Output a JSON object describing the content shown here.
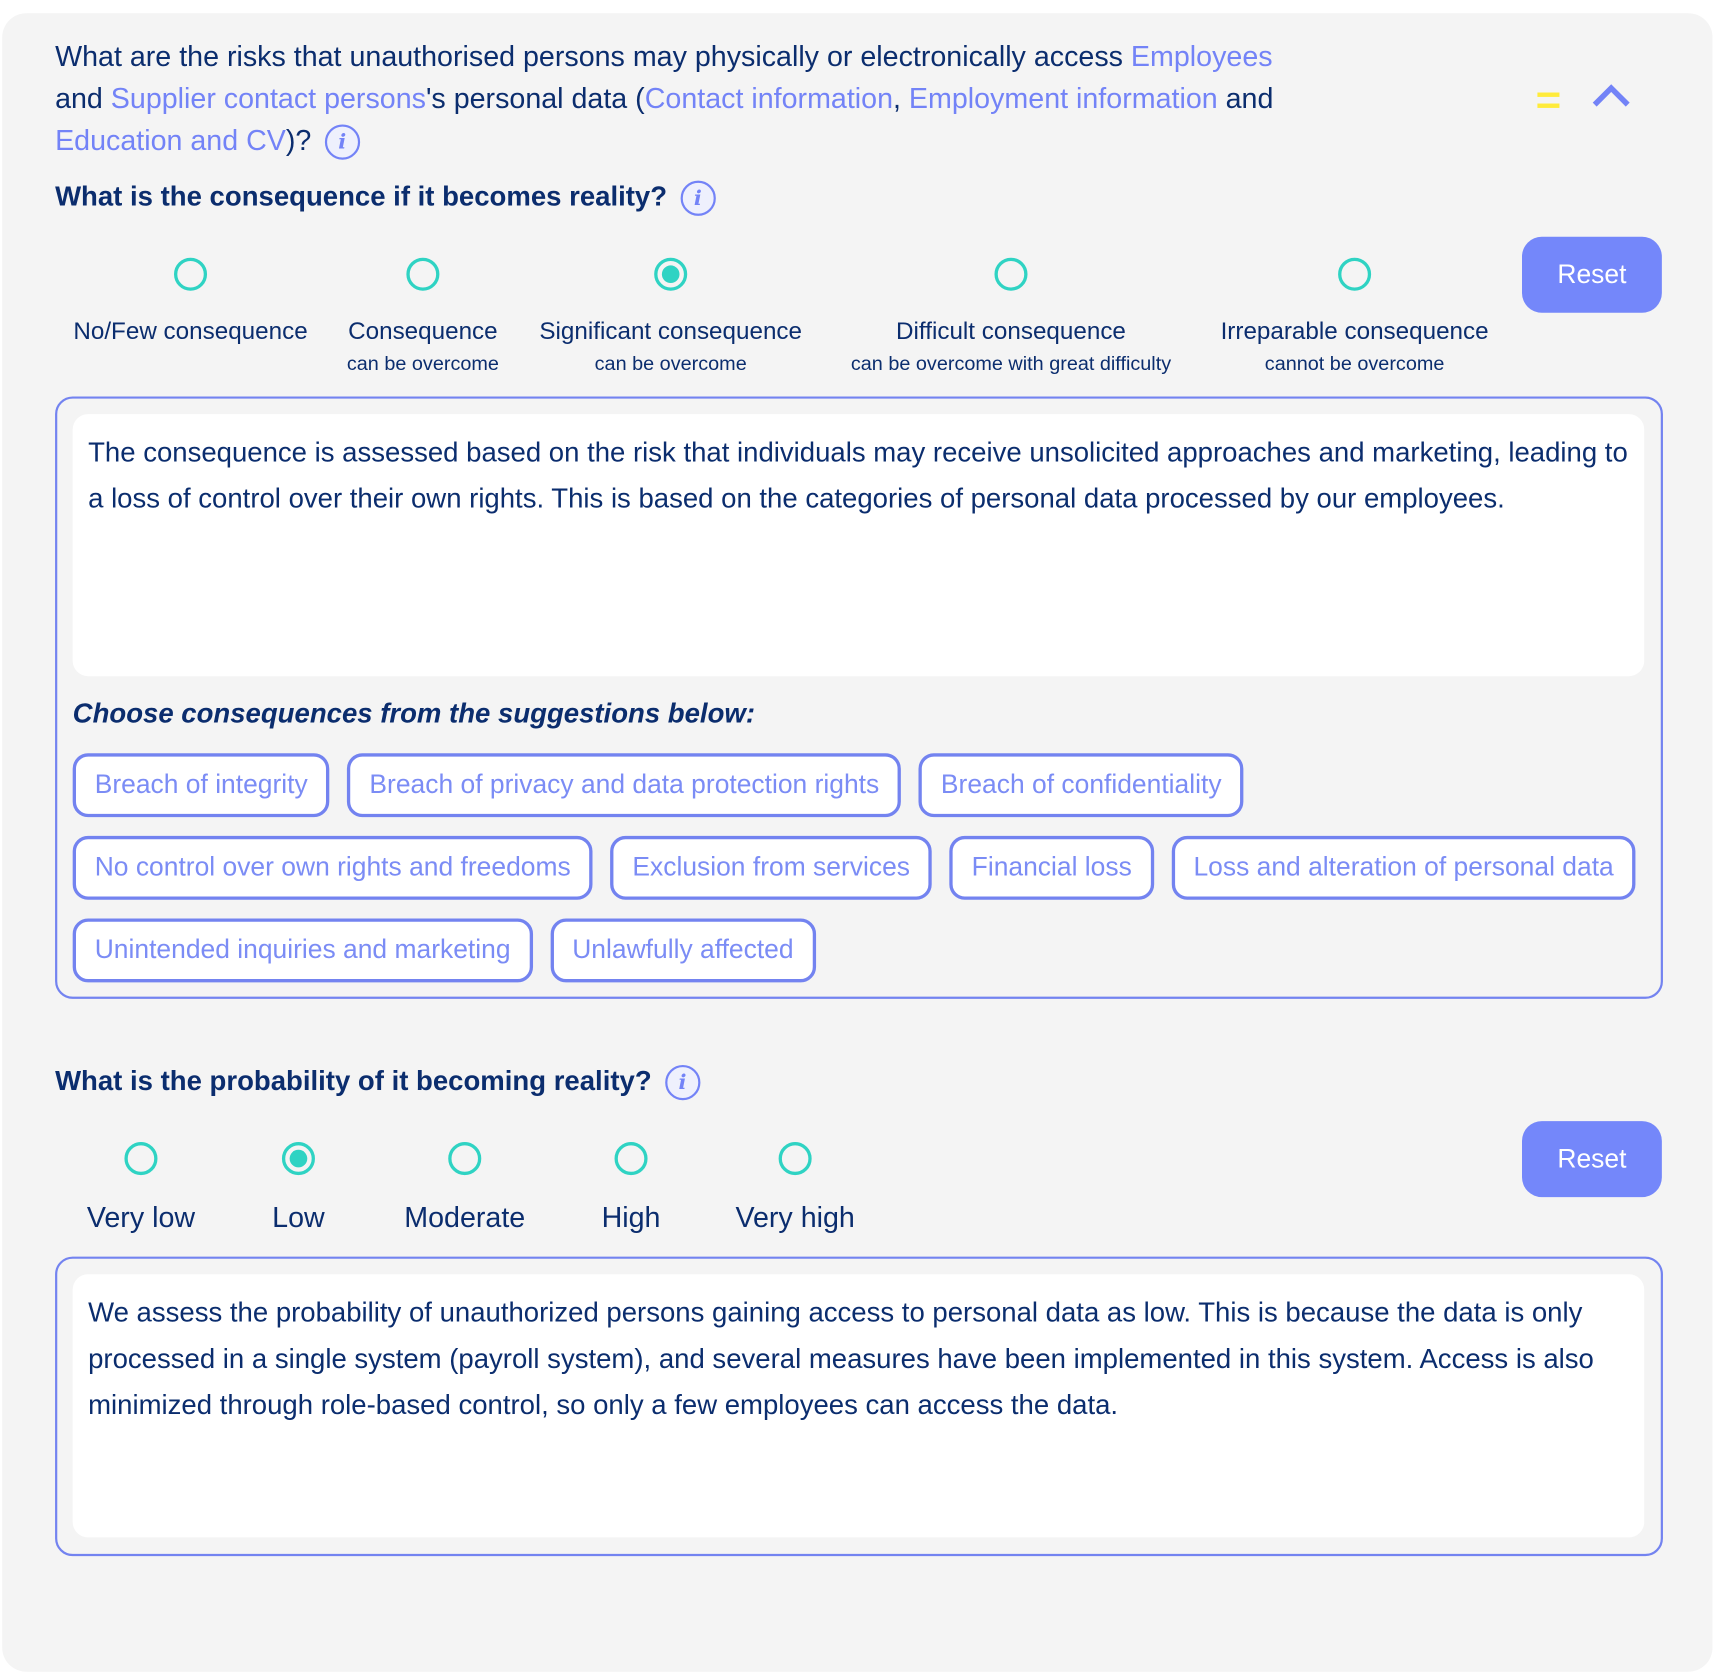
{
  "question": {
    "parts": [
      {
        "text": "What are the risks that unauthorised persons may physically or electronically access ",
        "link": false
      },
      {
        "text": "Employees",
        "link": true
      },
      {
        "text": " and ",
        "link": false
      },
      {
        "text": "Supplier contact persons",
        "link": true
      },
      {
        "text": "'s personal data (",
        "link": false
      },
      {
        "text": "Contact information",
        "link": true
      },
      {
        "text": ", ",
        "link": false
      },
      {
        "text": "Employment information",
        "link": true
      },
      {
        "text": " and ",
        "link": false
      },
      {
        "text": "Education and CV",
        "link": true
      },
      {
        "text": ")?",
        "link": false
      }
    ],
    "info_icon": "i"
  },
  "header_icons": {
    "equals": "=",
    "chevron": "chevron-up"
  },
  "colors": {
    "accent": "#7487fa",
    "radio": "#2fd3c3",
    "text": "#0b2d6e",
    "link": "#7383f7",
    "equals": "#ffeb3b"
  },
  "consequence": {
    "heading": "What is the consequence if it becomes reality?",
    "info_icon": "i",
    "options": [
      {
        "label": "No/Few consequence",
        "sub": "",
        "selected": false
      },
      {
        "label": "Consequence",
        "sub": "can be overcome",
        "selected": false
      },
      {
        "label": "Significant consequence",
        "sub": "can be overcome",
        "selected": true
      },
      {
        "label": "Difficult consequence",
        "sub": "can be overcome with great difficulty",
        "selected": false
      },
      {
        "label": "Irreparable consequence",
        "sub": "cannot be overcome",
        "selected": false
      }
    ],
    "reset_label": "Reset",
    "text": "The consequence is assessed based on the risk that individuals may receive unsolicited approaches and marketing, leading to a loss of control over their own rights. This is based on the categories of personal data processed by our employees.",
    "suggestions_label": "Choose consequences from the suggestions below:",
    "suggestions": [
      "Breach of integrity",
      "Breach of privacy and data protection rights",
      "Breach of confidentiality",
      "No control over own rights and freedoms",
      "Exclusion from services",
      "Financial loss",
      "Loss and alteration of personal data",
      "Unintended inquiries and marketing",
      "Unlawfully affected"
    ]
  },
  "probability": {
    "heading": "What is the probability of it becoming reality?",
    "info_icon": "i",
    "options": [
      {
        "label": "Very low",
        "selected": false
      },
      {
        "label": "Low",
        "selected": true
      },
      {
        "label": "Moderate",
        "selected": false
      },
      {
        "label": "High",
        "selected": false
      },
      {
        "label": "Very high",
        "selected": false
      }
    ],
    "reset_label": "Reset",
    "text": "We assess the probability of unauthorized persons gaining access to personal data as low. This is because the data is only processed in a single system (payroll system), and several measures have been implemented in this system. Access is also minimized through role-based control, so only a few employees can access the data."
  }
}
